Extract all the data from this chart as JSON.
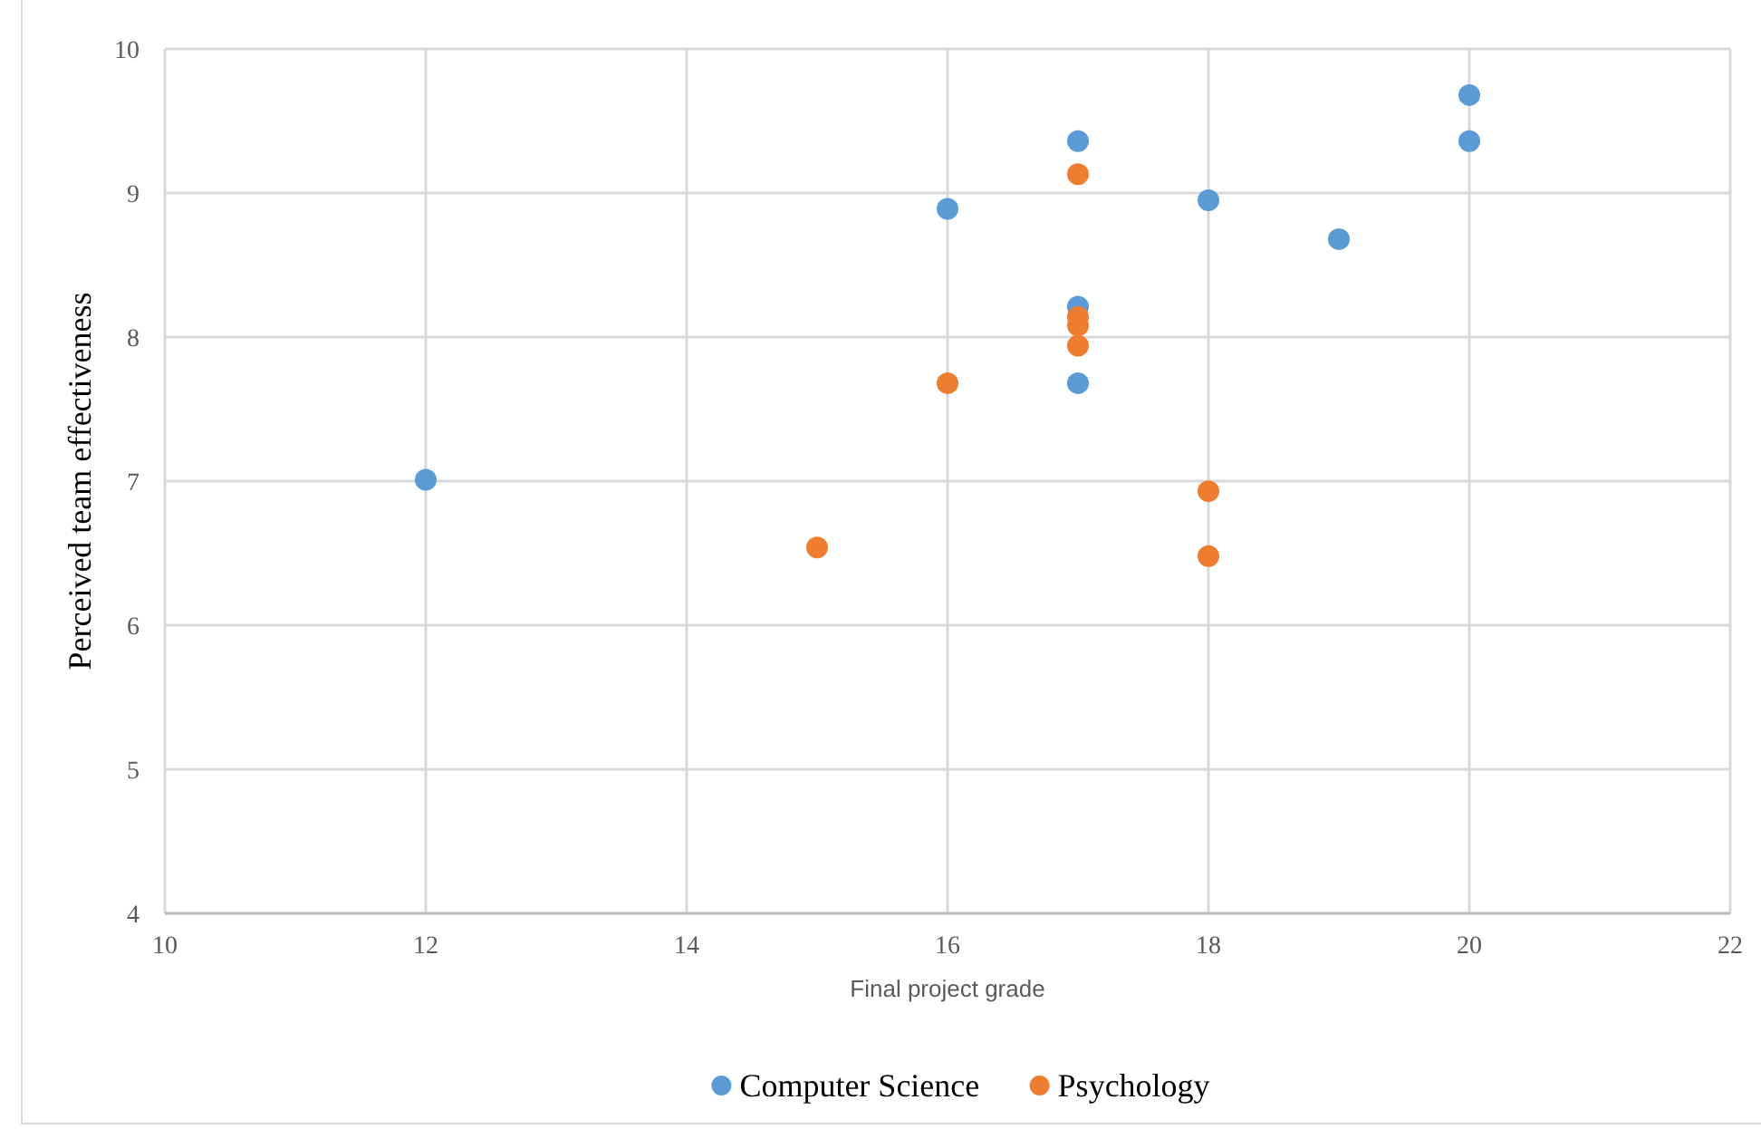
{
  "chart_data": {
    "type": "scatter",
    "xlabel": "Final project  grade",
    "ylabel": "Perceived team effectiveness",
    "xlim": [
      10,
      22
    ],
    "xticks": [
      10,
      12,
      14,
      16,
      18,
      20,
      22
    ],
    "ylim": [
      4,
      10
    ],
    "yticks": [
      4,
      5,
      6,
      7,
      8,
      9,
      10
    ],
    "grid": true,
    "legend": "bottom",
    "marker": "circle",
    "series": [
      {
        "name": "Computer Science",
        "color": "#5b9bd5",
        "x": [
          12,
          16,
          17,
          17,
          17,
          18,
          19,
          20,
          20
        ],
        "values": [
          7.01,
          8.89,
          9.36,
          8.21,
          7.68,
          8.95,
          8.68,
          9.68,
          9.36
        ]
      },
      {
        "name": "Psychology",
        "color": "#ed7d31",
        "x": [
          15,
          16,
          17,
          17,
          17,
          17,
          18,
          18
        ],
        "values": [
          6.54,
          7.68,
          9.13,
          8.14,
          8.08,
          7.94,
          6.93,
          6.48
        ]
      }
    ]
  }
}
